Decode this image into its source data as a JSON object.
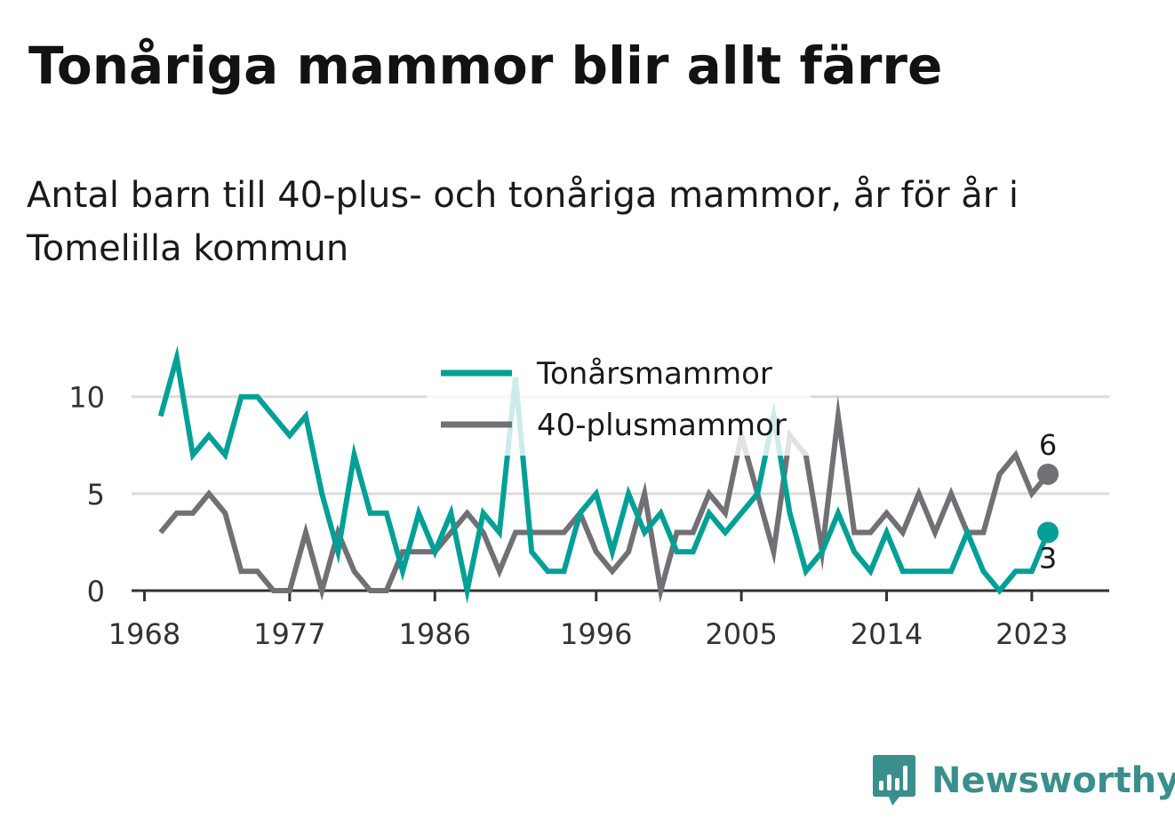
{
  "title": "Tonåriga mammor blir allt färre",
  "subtitle": "Antal barn till 40-plus- och tonåriga mammor, år för år i Tomelilla kommun",
  "brand": {
    "name": "Newsworthy",
    "logo_icon": "bar-chart-speech-bubble-icon",
    "color": "#3a8f8c"
  },
  "chart_data": {
    "type": "line",
    "title": "Tonåriga mammor blir allt färre",
    "xlabel": "",
    "ylabel": "",
    "x": [
      1969,
      1970,
      1971,
      1972,
      1973,
      1974,
      1975,
      1976,
      1977,
      1978,
      1979,
      1980,
      1981,
      1982,
      1983,
      1984,
      1985,
      1986,
      1987,
      1988,
      1989,
      1990,
      1991,
      1992,
      1993,
      1994,
      1995,
      1996,
      1997,
      1998,
      1999,
      2000,
      2001,
      2002,
      2003,
      2004,
      2005,
      2006,
      2007,
      2008,
      2009,
      2010,
      2011,
      2012,
      2013,
      2014,
      2015,
      2016,
      2017,
      2018,
      2019,
      2020,
      2021,
      2022,
      2023,
      2024
    ],
    "series": [
      {
        "name": "Tonårsmammor",
        "color": "#00a096",
        "values": [
          9,
          12,
          7,
          8,
          7,
          10,
          10,
          9,
          8,
          9,
          5,
          2,
          7,
          4,
          4,
          1,
          4,
          2,
          4,
          0,
          4,
          3,
          11,
          2,
          1,
          1,
          4,
          5,
          2,
          5,
          3,
          4,
          2,
          2,
          4,
          3,
          4,
          5,
          9,
          4,
          1,
          2,
          4,
          2,
          1,
          3,
          1,
          1,
          1,
          1,
          3,
          1,
          0,
          1,
          1,
          3
        ]
      },
      {
        "name": "40-plusmammor",
        "color": "#707075",
        "values": [
          3,
          4,
          4,
          5,
          4,
          1,
          1,
          0,
          0,
          3,
          0,
          3,
          1,
          0,
          0,
          2,
          2,
          2,
          3,
          4,
          3,
          1,
          3,
          3,
          3,
          3,
          4,
          2,
          1,
          2,
          5,
          0,
          3,
          3,
          5,
          4,
          8,
          5,
          2,
          8,
          7,
          2,
          9,
          3,
          3,
          4,
          3,
          5,
          3,
          5,
          3,
          3,
          6,
          7,
          5,
          6
        ]
      }
    ],
    "end_labels": [
      {
        "series": "40-plusmammor",
        "x": 2024,
        "value": 6,
        "text": "6"
      },
      {
        "series": "Tonårsmammor",
        "x": 2024,
        "value": 3,
        "text": "3"
      }
    ],
    "x_ticks": [
      1968,
      1977,
      1986,
      1996,
      2005,
      2014,
      2023
    ],
    "x_tick_labels": [
      "1968",
      "1977",
      "1986",
      "1996",
      "2005",
      "2014",
      "2023"
    ],
    "y_ticks": [
      0,
      5,
      10
    ],
    "y_tick_labels": [
      "0",
      "5",
      "10"
    ],
    "xlim": [
      1967.2,
      2027.8
    ],
    "ylim": [
      0,
      12
    ],
    "grid": true,
    "legend_position": "top-center",
    "legend": [
      "Tonårsmammor",
      "40-plusmammor"
    ]
  }
}
